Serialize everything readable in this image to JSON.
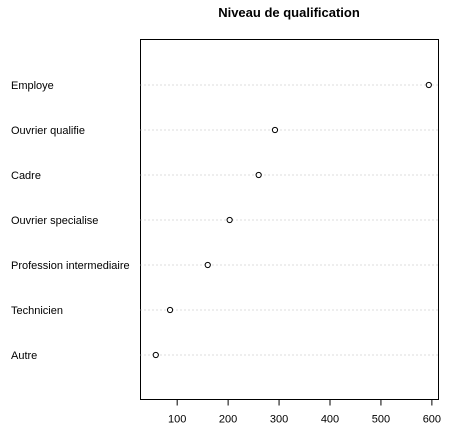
{
  "chart_data": {
    "type": "scatter",
    "title": "Niveau de qualification",
    "xlabel": "",
    "ylabel": "",
    "categories": [
      "Employe",
      "Ouvrier qualifie",
      "Cadre",
      "Ouvrier specialise",
      "Profession intermediaire",
      "Technicien",
      "Autre"
    ],
    "values": [
      594,
      292,
      260,
      203,
      160,
      86,
      58
    ],
    "xlim": [
      28,
      613
    ],
    "xticks": [
      100,
      200,
      300,
      400,
      500,
      600
    ],
    "grid": false,
    "guide_lines": "dotted"
  }
}
